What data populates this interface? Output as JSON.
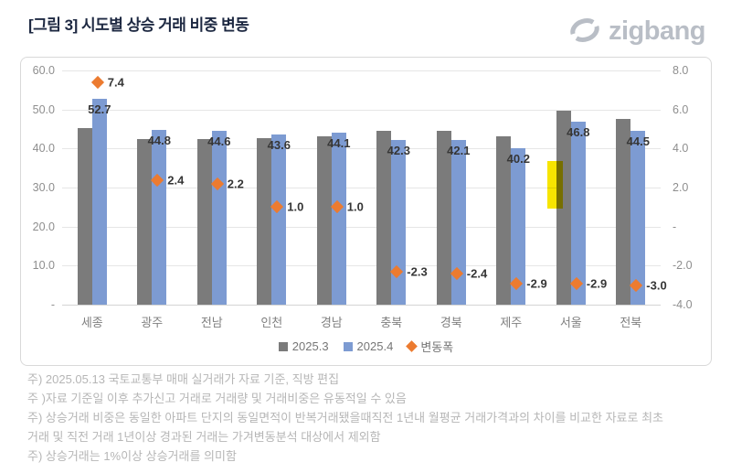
{
  "header": {
    "title": "[그림 3] 시도별 상승 거래 비중 변동",
    "logo_text": "zigbang",
    "logo_color": "#b9bec6",
    "title_color": "#1e2942"
  },
  "chart_data": {
    "type": "bar",
    "title": "[그림 3] 시도별 상승 거래 비중 변동",
    "categories": [
      "세종",
      "광주",
      "전남",
      "인천",
      "경남",
      "충북",
      "경북",
      "제주",
      "서울",
      "전북"
    ],
    "series": [
      {
        "name": "2025.3",
        "color": "#7b7b7b",
        "values": [
          45.3,
          42.4,
          42.4,
          42.6,
          43.1,
          44.6,
          44.5,
          43.1,
          49.7,
          47.5
        ]
      },
      {
        "name": "2025.4",
        "color": "#7d9bd2",
        "values": [
          52.7,
          44.8,
          44.6,
          43.6,
          44.1,
          42.3,
          42.1,
          40.2,
          46.8,
          44.5
        ],
        "labels": [
          "52.7",
          "44.8",
          "44.6",
          "43.6",
          "44.1",
          "42.3",
          "42.1",
          "40.2",
          "46.8",
          "44.5"
        ]
      }
    ],
    "change_series": {
      "name": "변동폭",
      "marker": "diamond",
      "color": "#ec7b30",
      "axis": "right",
      "values": [
        7.4,
        2.4,
        2.2,
        1.0,
        1.0,
        -2.3,
        -2.4,
        -2.9,
        -2.9,
        -3.0
      ],
      "labels": [
        "7.4",
        "2.4",
        "2.2",
        "1.0",
        "1.0",
        "-2.3",
        "-2.4",
        "-2.9",
        "-2.9",
        "-3.0"
      ]
    },
    "left_axis": {
      "min": 0,
      "max": 60,
      "tick_values": [
        60,
        50,
        40,
        30,
        20,
        10,
        0
      ],
      "tick_labels": [
        "60.0",
        "50.0",
        "40.0",
        "30.0",
        "20.0",
        "10.0",
        "-"
      ]
    },
    "right_axis": {
      "min": -4,
      "max": 8,
      "tick_values": [
        8,
        6,
        4,
        2,
        0,
        -2,
        -4
      ],
      "tick_labels": [
        "8.0",
        "6.0",
        "4.0",
        "2.0",
        "-",
        "-2.0",
        "-4.0"
      ]
    },
    "grid": "horizontal",
    "legend_position": "bottom-center",
    "annotations": [
      {
        "type": "highlight-rect",
        "category": "서울",
        "color": "#f7e500",
        "axis": "left",
        "from": 24.7,
        "to": 36.8
      }
    ]
  },
  "legend": {
    "items": [
      {
        "label": "2025.3",
        "marker": "square",
        "color": "#7b7b7b"
      },
      {
        "label": "2025.4",
        "marker": "square",
        "color": "#7d9bd2"
      },
      {
        "label": "변동폭",
        "marker": "diamond",
        "color": "#ec7b30"
      }
    ]
  },
  "footnotes": [
    "주) 2025.05.13 국토교통부 매매 실거래가 자료 기준, 직방 편집",
    "주 )자료 기준일 이후 추가신고 거래로 거래량 및 거래비중은 유동적일 수 있음",
    "주) 상승거래 비중은 동일한 아파트 단지의 동일면적이 반복거래됐을때직전 1년내 월평균 거래가격과의 차이를 비교한 자료로 최초",
    "거래 및 직전 거래 1년이상 경과된 거래는 가겨변동분석 대상에서 제외함",
    "주) 상승거래는 1%이상 상승거래를 의미함"
  ]
}
